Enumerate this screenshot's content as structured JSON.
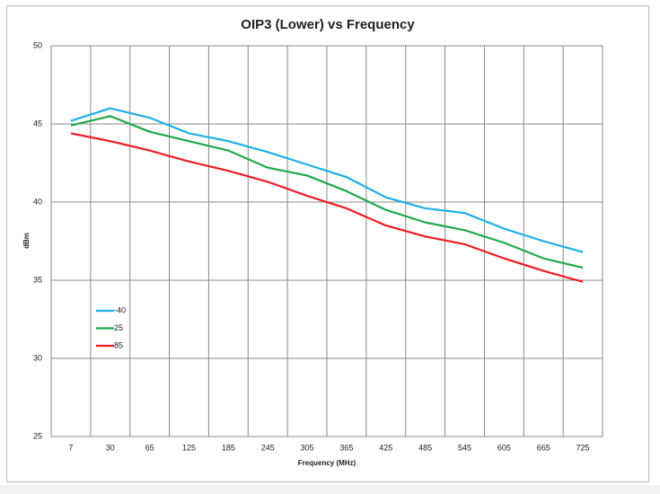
{
  "chart_data": {
    "type": "line",
    "title": "OIP3 (Lower) vs Frequency",
    "x_label": "Frequency (MHz)",
    "y_label": "dBm",
    "categories": [
      "7",
      "30",
      "65",
      "125",
      "185",
      "245",
      "305",
      "365",
      "425",
      "485",
      "545",
      "605",
      "665",
      "725"
    ],
    "series": [
      {
        "name": "-40",
        "color": "#1fb0e6",
        "values": [
          45.2,
          46.0,
          45.4,
          44.4,
          43.9,
          43.2,
          42.4,
          41.6,
          40.3,
          39.6,
          39.3,
          38.3,
          37.5,
          36.8
        ]
      },
      {
        "name": "25",
        "color": "#20a84a",
        "values": [
          44.9,
          45.5,
          44.5,
          43.9,
          43.3,
          42.2,
          41.7,
          40.7,
          39.5,
          38.7,
          38.2,
          37.4,
          36.4,
          35.8
        ]
      },
      {
        "name": "85",
        "color": "#ee1c24",
        "values": [
          44.4,
          43.9,
          43.3,
          42.6,
          42.0,
          41.3,
          40.4,
          39.6,
          38.5,
          37.8,
          37.3,
          36.4,
          35.6,
          34.9
        ]
      }
    ],
    "ylim": [
      25,
      50
    ],
    "yticks": [
      25,
      30,
      35,
      40,
      45,
      50
    ],
    "grid": true,
    "legend_position": "left"
  }
}
